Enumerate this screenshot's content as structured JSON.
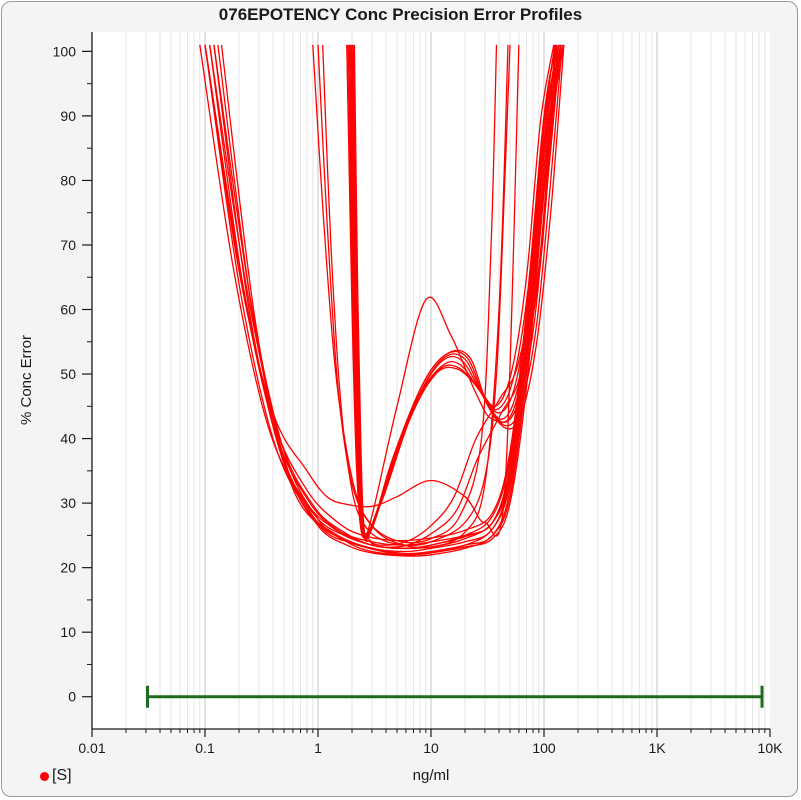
{
  "chart_data": {
    "type": "line",
    "title": "076EPOTENCY Conc Precision Error Profiles",
    "xlabel": "ng/ml",
    "ylabel": "% Conc Error",
    "x_scale": "log",
    "xlim": [
      0.01,
      10000
    ],
    "ylim": [
      -5,
      103
    ],
    "x_ticks": [
      0.01,
      0.1,
      1,
      10,
      100,
      1000,
      10000
    ],
    "x_tick_labels": [
      "0.01",
      "0.1",
      "1",
      "10",
      "100",
      "1K",
      "10K"
    ],
    "y_ticks": [
      0,
      10,
      20,
      30,
      40,
      50,
      60,
      70,
      80,
      90,
      100
    ],
    "y_tick_labels": [
      "0",
      "10",
      "20",
      "30",
      "40",
      "50",
      "60",
      "70",
      "80",
      "90",
      "100"
    ],
    "grid": true,
    "legend": {
      "position": "bottom-left",
      "entries": [
        {
          "label": "[S]",
          "color": "#ff0000"
        }
      ]
    },
    "range_bar": {
      "x_start": 0.031,
      "x_end": 8500,
      "y": 0,
      "color": "#1e6b1e"
    },
    "series_color": "#ff0000",
    "series": [
      {
        "x": [
          0.1,
          0.2,
          0.4,
          0.8,
          1.5,
          3,
          6,
          10,
          20,
          35,
          50,
          70,
          100,
          130
        ],
        "y": [
          101,
          64,
          40,
          29,
          25,
          23,
          22.5,
          23,
          24,
          26,
          34,
          55,
          85,
          101
        ]
      },
      {
        "x": [
          0.11,
          0.22,
          0.45,
          0.9,
          1.6,
          3,
          6,
          10,
          20,
          35,
          50,
          70,
          100,
          135
        ],
        "y": [
          101,
          63,
          39,
          28,
          24.5,
          23,
          22.2,
          22.5,
          23.5,
          25,
          32,
          52,
          82,
          101
        ]
      },
      {
        "x": [
          0.12,
          0.25,
          0.5,
          1.0,
          1.8,
          3,
          6,
          10,
          20,
          35,
          50,
          70,
          100,
          140
        ],
        "y": [
          101,
          62,
          38,
          27.5,
          24,
          22.5,
          22,
          22.3,
          23.2,
          24.5,
          30,
          48,
          78,
          101
        ]
      },
      {
        "x": [
          0.09,
          0.18,
          0.36,
          0.72,
          1.4,
          3,
          6,
          10,
          20,
          35,
          50,
          70,
          100,
          125
        ],
        "y": [
          101,
          66,
          42,
          31,
          26,
          24,
          23.5,
          24,
          25,
          27,
          36,
          58,
          88,
          101
        ]
      },
      {
        "x": [
          0.1,
          0.21,
          0.42,
          0.85,
          1.6,
          3,
          6,
          10,
          20,
          35,
          50,
          70,
          100,
          130
        ],
        "y": [
          101,
          65,
          41,
          30,
          25.5,
          23.5,
          23,
          23.5,
          24.8,
          27,
          35,
          56,
          86,
          101
        ]
      },
      {
        "x": [
          0.13,
          0.26,
          0.52,
          1.0,
          1.8,
          3,
          6,
          10,
          20,
          35,
          50,
          70,
          100,
          140
        ],
        "y": [
          101,
          60,
          36,
          26.5,
          23.5,
          22.3,
          21.8,
          22,
          23,
          25,
          31,
          50,
          80,
          101
        ]
      },
      {
        "x": [
          0.11,
          0.23,
          0.46,
          0.92,
          1.7,
          3,
          6,
          10,
          20,
          35,
          50,
          70,
          100,
          135
        ],
        "y": [
          101,
          64,
          40,
          29.5,
          25.5,
          23.5,
          23,
          23.5,
          25,
          28,
          37,
          58,
          88,
          101
        ]
      },
      {
        "x": [
          0.14,
          0.28,
          0.55,
          1.1,
          2.0,
          3.5,
          6,
          10,
          20,
          35,
          50,
          70,
          100,
          145
        ],
        "y": [
          101,
          58,
          34,
          26,
          23.8,
          22.6,
          22,
          22.3,
          23.5,
          26,
          33,
          52,
          82,
          101
        ]
      },
      {
        "x": [
          0.12,
          0.24,
          0.48,
          0.95,
          1.7,
          3,
          5,
          10,
          20,
          35,
          50,
          70,
          100,
          140
        ],
        "y": [
          101,
          61,
          37,
          28,
          25,
          23.5,
          23,
          23.2,
          24.5,
          27,
          34,
          54,
          84,
          101
        ]
      },
      {
        "x": [
          0.1,
          0.2,
          0.4,
          0.8,
          1.5,
          2.5,
          5,
          10,
          20,
          35,
          50,
          70,
          100,
          128
        ],
        "y": [
          101,
          67,
          43,
          32,
          27,
          25,
          24.2,
          24.6,
          25.8,
          28.5,
          38,
          60,
          90,
          101
        ]
      },
      {
        "x": [
          0.1,
          0.2,
          0.4,
          0.8,
          1.2,
          1.8,
          3,
          5,
          10,
          20,
          30,
          45,
          60
        ],
        "y": [
          101,
          66,
          44,
          35,
          31,
          29.8,
          29.5,
          31,
          33.5,
          31,
          27,
          32,
          101
        ]
      },
      {
        "x": [
          1.8,
          2.0,
          2.2,
          2.5,
          3,
          5,
          9,
          15,
          25,
          35,
          55,
          90,
          120,
          150
        ],
        "y": [
          101,
          60,
          35,
          25,
          28,
          45,
          61.5,
          56,
          47,
          43,
          45,
          65,
          90,
          101
        ]
      },
      {
        "x": [
          1.9,
          2.05,
          2.2,
          2.4,
          2.8,
          4,
          7,
          12,
          18,
          28,
          40,
          55,
          75,
          100,
          130
        ],
        "y": [
          101,
          70,
          45,
          27,
          25.5,
          33,
          45,
          51,
          51.5,
          47,
          44,
          48,
          62,
          85,
          101
        ]
      },
      {
        "x": [
          1.95,
          2.1,
          2.25,
          2.45,
          2.9,
          4.2,
          7.5,
          12.5,
          19,
          29,
          42,
          57,
          78,
          104,
          135
        ],
        "y": [
          101,
          68,
          43,
          26.5,
          25.8,
          34,
          46,
          52,
          52,
          46.5,
          43,
          47,
          60,
          82,
          101
        ]
      },
      {
        "x": [
          2.0,
          2.15,
          2.3,
          2.5,
          3.0,
          4.4,
          8,
          13,
          20,
          30,
          44,
          60,
          82,
          108,
          140
        ],
        "y": [
          101,
          66,
          41,
          26,
          26,
          35,
          47,
          52.5,
          52.3,
          46,
          42.5,
          46,
          58,
          80,
          101
        ]
      },
      {
        "x": [
          1.85,
          2.0,
          2.15,
          2.35,
          2.7,
          3.9,
          6.8,
          11.5,
          17.5,
          27,
          38,
          53,
          72,
          96,
          125
        ],
        "y": [
          101,
          72,
          47,
          28,
          25,
          32,
          44,
          50.5,
          51,
          47.5,
          44.5,
          49,
          63,
          87,
          101
        ]
      },
      {
        "x": [
          2.05,
          2.2,
          2.35,
          2.55,
          3.05,
          4.5,
          8.2,
          13.5,
          21,
          31,
          46,
          62,
          85,
          112,
          145
        ],
        "y": [
          101,
          64,
          40,
          25.5,
          26.5,
          36,
          48,
          53,
          52.5,
          45.5,
          42,
          45,
          57,
          78,
          101
        ]
      },
      {
        "x": [
          2.1,
          2.25,
          2.4,
          2.6,
          3.1,
          4.6,
          8.5,
          14,
          22,
          32,
          48,
          65,
          88,
          116,
          150
        ],
        "y": [
          101,
          62,
          38,
          25.2,
          27,
          37,
          48.5,
          53.2,
          52.6,
          45,
          41.5,
          44.5,
          56,
          76,
          101
        ]
      },
      {
        "x": [
          1.8,
          1.95,
          2.1,
          2.3,
          2.65,
          3.8,
          6.5,
          11,
          17,
          26,
          37,
          51,
          70,
          93,
          122
        ],
        "y": [
          101,
          74,
          49,
          29,
          25.2,
          31,
          43,
          50,
          50.8,
          48,
          45,
          50,
          65,
          89,
          101
        ]
      },
      {
        "x": [
          1.9,
          2.05,
          2.2,
          2.4,
          2.8,
          3.5,
          6,
          10,
          16,
          25,
          40,
          60,
          90,
          125
        ],
        "y": [
          101,
          70,
          45,
          27,
          24.5,
          23.5,
          24,
          26.5,
          31,
          40,
          46,
          52,
          70,
          101
        ]
      },
      {
        "x": [
          2.0,
          2.15,
          2.3,
          2.5,
          2.9,
          3.6,
          6.2,
          10.5,
          17,
          26,
          42,
          62,
          92,
          128
        ],
        "y": [
          101,
          67,
          42,
          26,
          24,
          23.2,
          23.5,
          25.5,
          29,
          37,
          44,
          50,
          68,
          101
        ]
      },
      {
        "x": [
          1.1,
          1.3,
          1.6,
          2.0,
          2.5,
          3.5,
          6,
          10,
          20,
          30,
          38,
          45,
          50
        ],
        "y": [
          101,
          70,
          45,
          32,
          27,
          24.5,
          23.5,
          24,
          27,
          34,
          50,
          80,
          101
        ]
      },
      {
        "x": [
          0.9,
          1.1,
          1.4,
          1.8,
          2.3,
          3.2,
          5.5,
          10,
          18,
          28,
          34,
          38
        ],
        "y": [
          101,
          76,
          52,
          38,
          30,
          26,
          24,
          24.5,
          28,
          40,
          70,
          101
        ]
      },
      {
        "x": [
          1.0,
          1.2,
          1.5,
          2.0,
          3,
          5,
          10,
          20,
          30,
          40,
          48
        ],
        "y": [
          101,
          74,
          48,
          33,
          26.5,
          23.8,
          23.2,
          25.5,
          33,
          60,
          101
        ]
      }
    ]
  }
}
